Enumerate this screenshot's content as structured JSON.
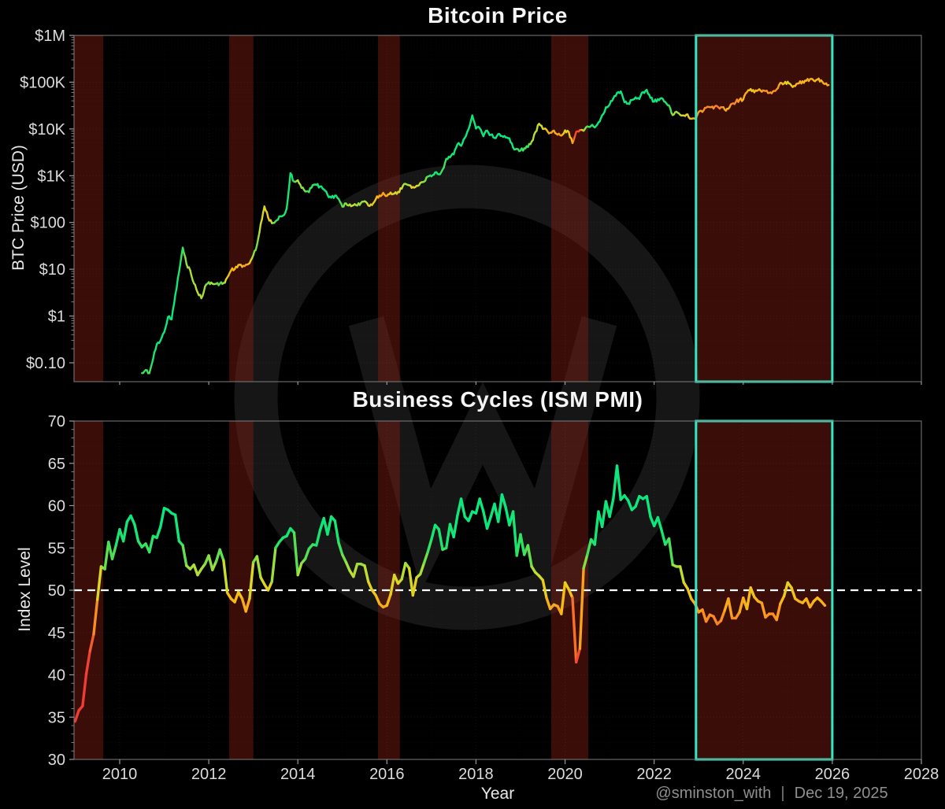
{
  "titles": {
    "top": "Bitcoin Price",
    "bottom": "Business Cycles (ISM PMI)"
  },
  "axis_labels": {
    "top_y": "BTC Price (USD)",
    "bottom_y": "Index Level",
    "x": "Year"
  },
  "attribution": {
    "handle": "@sminston_with",
    "separator": "|",
    "date": "Dec 19, 2025"
  },
  "colors": {
    "background": "#000000",
    "band_fill": "rgba(140,32,18,0.42)",
    "highlight_box": "#30e9c4",
    "spine": "#7d7d7d",
    "tick": "#999999",
    "tick_label": "#dcdcdc",
    "grid_major": "rgba(255,255,255,0.07)",
    "grid_minor": "rgba(255,255,255,0.03)",
    "reference_line": "#ffffff",
    "watermark": "#161616",
    "text": "#f5f5f5",
    "muted_text": "#8f8f8f"
  },
  "color_scale": {
    "encodes": "ISM PMI level (shared by both lines)",
    "stops": [
      [
        30,
        "#ee3a31"
      ],
      [
        41,
        "#f03e34"
      ],
      [
        44,
        "#f25c30"
      ],
      [
        46,
        "#f87b27"
      ],
      [
        47.5,
        "#fb9b1e"
      ],
      [
        49,
        "#f6bb16"
      ],
      [
        50,
        "#eccc1c"
      ],
      [
        51.5,
        "#cfdd2a"
      ],
      [
        53,
        "#9adf3e"
      ],
      [
        54.5,
        "#4fdf55"
      ],
      [
        56,
        "#1ce46e"
      ],
      [
        58,
        "#0ce87d"
      ],
      [
        70,
        "#0ce87d"
      ]
    ]
  },
  "chart_data": [
    {
      "type": "line",
      "title": "Bitcoin Price",
      "ylabel": "BTC Price (USD)",
      "y_scale": "log",
      "ylim": [
        0.0395,
        1000000
      ],
      "x_domain": [
        2008.975,
        2028.0
      ],
      "xticks": [
        2010,
        2012,
        2014,
        2016,
        2018,
        2020,
        2022,
        2024,
        2026,
        2028
      ],
      "yticks": [
        {
          "label": "$1M",
          "value": 1000000
        },
        {
          "label": "$100K",
          "value": 100000
        },
        {
          "label": "$10K",
          "value": 10000
        },
        {
          "label": "$1K",
          "value": 1000
        },
        {
          "label": "$100",
          "value": 100
        },
        {
          "label": "$10",
          "value": 10
        },
        {
          "label": "$1",
          "value": 1
        },
        {
          "label": "$0.10",
          "value": 0.1
        }
      ],
      "recession_bands": [
        [
          2008.975,
          2009.63
        ],
        [
          2012.46,
          2013.0
        ],
        [
          2015.8,
          2016.29
        ],
        [
          2019.69,
          2020.52
        ],
        [
          2022.94,
          2026.0
        ]
      ],
      "highlight_box": {
        "x0": 2022.94,
        "x1": 2026.0
      },
      "grid": true,
      "legend": "none",
      "series": {
        "name": "BTC price, colored by ISM PMI",
        "start_year": 2010.5,
        "cadence": "monthly",
        "monthly_values": [
          0.06,
          0.07,
          0.06,
          0.12,
          0.25,
          0.3,
          0.45,
          0.95,
          0.85,
          2.9,
          8.7,
          29,
          13,
          9.5,
          5.0,
          3.2,
          2.4,
          4.3,
          5.3,
          4.9,
          4.9,
          4.9,
          5.1,
          6.7,
          9.4,
          10.1,
          12.4,
          11.2,
          12.5,
          13.5,
          20,
          33,
          93,
          220,
          128,
          97,
          106,
          135,
          140,
          200,
          1130,
          750,
          800,
          550,
          460,
          445,
          625,
          635,
          590,
          510,
          390,
          340,
          375,
          320,
          218,
          255,
          245,
          235,
          230,
          262,
          285,
          230,
          236,
          315,
          377,
          430,
          370,
          437,
          415,
          450,
          530,
          670,
          625,
          575,
          610,
          700,
          745,
          960,
          970,
          1180,
          1070,
          1350,
          2300,
          2480,
          2870,
          4700,
          4360,
          6470,
          9900,
          19500,
          10200,
          10400,
          7000,
          9200,
          7500,
          6400,
          7780,
          7040,
          6600,
          6300,
          4000,
          3740,
          3460,
          3850,
          4100,
          5350,
          8550,
          12900,
          10000,
          9600,
          8300,
          9200,
          7550,
          7200,
          9350,
          8600,
          5000,
          8650,
          9450,
          9140,
          11350,
          11650,
          10780,
          13800,
          19700,
          29000,
          33100,
          45100,
          58900,
          63500,
          37300,
          35000,
          41600,
          47200,
          43800,
          61300,
          68500,
          46300,
          38500,
          43200,
          45500,
          37700,
          31800,
          19800,
          23300,
          20000,
          19400,
          20500,
          16500,
          16600,
          23100,
          23100,
          28500,
          29300,
          27200,
          30500,
          29200,
          26000,
          27000,
          34700,
          37700,
          42300,
          42600,
          61200,
          71300,
          60600,
          67500,
          62700,
          64600,
          59000,
          63300,
          70200,
          96400,
          93400,
          102000,
          84400,
          82500,
          94200,
          104600,
          107100,
          115800,
          108200,
          114000,
          110000,
          91400,
          87000
        ]
      }
    },
    {
      "type": "line",
      "title": "Business Cycles (ISM PMI)",
      "ylabel": "Index Level",
      "y_scale": "linear",
      "ylim": [
        30,
        70
      ],
      "x_domain": [
        2008.975,
        2028.0
      ],
      "xticks": [
        2010,
        2012,
        2014,
        2016,
        2018,
        2020,
        2022,
        2024,
        2026,
        2028
      ],
      "yticks": [
        {
          "label": "70",
          "value": 70
        },
        {
          "label": "65",
          "value": 65
        },
        {
          "label": "60",
          "value": 60
        },
        {
          "label": "55",
          "value": 55
        },
        {
          "label": "50",
          "value": 50
        },
        {
          "label": "45",
          "value": 45
        },
        {
          "label": "40",
          "value": 40
        },
        {
          "label": "35",
          "value": 35
        },
        {
          "label": "30",
          "value": 30
        }
      ],
      "reference_line": 50,
      "recession_bands": [
        [
          2008.975,
          2009.63
        ],
        [
          2012.46,
          2013.0
        ],
        [
          2015.8,
          2016.29
        ],
        [
          2019.69,
          2020.52
        ],
        [
          2022.94,
          2026.0
        ]
      ],
      "highlight_box": {
        "x0": 2022.94,
        "x1": 2026.0
      },
      "grid": true,
      "legend": "none",
      "series": {
        "name": "ISM Manufacturing PMI",
        "start_year": 2009.0,
        "cadence": "monthly",
        "monthly_values": [
          34.5,
          35.8,
          36.3,
          40.1,
          42.8,
          44.8,
          48.9,
          52.8,
          52.5,
          55.7,
          53.7,
          55.3,
          57.2,
          55.8,
          58.1,
          58.8,
          57.8,
          55.8,
          55.1,
          55.5,
          54.5,
          56.4,
          56.2,
          57.5,
          59.7,
          59.5,
          59.1,
          58.9,
          55.8,
          55.3,
          52.9,
          52.5,
          53.0,
          51.8,
          52.5,
          53.1,
          54.1,
          52.4,
          53.4,
          54.8,
          53.5,
          49.7,
          49.0,
          48.6,
          49.8,
          49.0,
          47.5,
          49.0,
          53.3,
          54.0,
          51.5,
          50.7,
          50.0,
          51.0,
          55.0,
          55.7,
          56.2,
          56.4,
          57.3,
          56.8,
          51.8,
          53.2,
          53.7,
          54.9,
          55.4,
          55.3,
          57.1,
          58.5,
          56.6,
          58.7,
          58.2,
          55.6,
          54.2,
          53.3,
          52.3,
          51.6,
          53.1,
          53.1,
          52.9,
          51.0,
          50.0,
          49.4,
          48.4,
          48.0,
          48.2,
          49.5,
          51.8,
          50.8,
          51.3,
          53.2,
          52.6,
          49.4,
          51.5,
          51.9,
          53.2,
          54.5,
          56.0,
          57.7,
          57.2,
          54.8,
          55.0,
          57.8,
          56.3,
          58.8,
          60.8,
          58.7,
          58.2,
          59.3,
          59.1,
          60.8,
          59.3,
          57.3,
          58.7,
          60.2,
          58.1,
          61.3,
          59.8,
          57.7,
          59.3,
          54.1,
          56.6,
          54.2,
          55.3,
          52.8,
          52.1,
          51.7,
          51.2,
          49.1,
          47.8,
          48.3,
          48.1,
          47.2,
          50.9,
          50.1,
          49.1,
          41.5,
          43.1,
          52.6,
          54.2,
          56.0,
          55.4,
          59.3,
          57.5,
          60.5,
          58.7,
          60.8,
          64.7,
          60.7,
          61.2,
          60.6,
          59.5,
          59.9,
          61.1,
          60.8,
          61.1,
          58.7,
          57.6,
          58.6,
          57.1,
          55.4,
          56.1,
          53.0,
          52.8,
          52.8,
          50.9,
          50.2,
          49.0,
          48.4,
          47.4,
          47.7,
          46.3,
          47.1,
          46.9,
          46.0,
          46.4,
          47.6,
          49.0,
          46.7,
          46.7,
          47.4,
          49.1,
          47.8,
          50.3,
          49.2,
          48.7,
          48.5,
          46.8,
          47.2,
          47.2,
          46.5,
          48.4,
          49.3,
          50.9,
          50.3,
          49.0,
          48.7,
          48.5,
          49.0,
          48.0,
          48.7,
          49.1,
          48.7,
          48.2
        ]
      }
    }
  ]
}
